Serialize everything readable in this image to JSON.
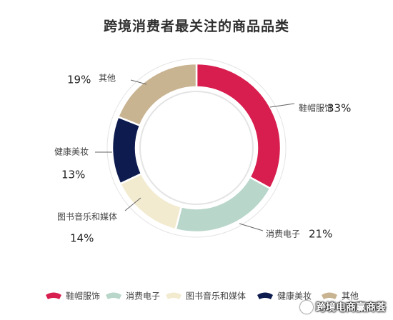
{
  "chart_data": {
    "type": "pie",
    "title": "跨境消费者最关注的商品品类",
    "series": [
      {
        "name": "鞋帽服饰",
        "value": 33,
        "value_label": "33%",
        "color": "#d81e4f"
      },
      {
        "name": "消费电子",
        "value": 21,
        "value_label": "21%",
        "color": "#b8d6ca"
      },
      {
        "name": "图书音乐和媒体",
        "value": 14,
        "value_label": "14%",
        "color": "#f3ebd0"
      },
      {
        "name": "健康美妆",
        "value": 13,
        "value_label": "13%",
        "color": "#0d1b4e"
      },
      {
        "name": "其他",
        "value": 19,
        "value_label": "19%",
        "color": "#c9b492"
      }
    ],
    "legend": {
      "placement": "bottom",
      "entries": [
        "鞋帽服饰",
        "消费电子",
        "图书音乐和媒体",
        "健康美妆",
        "其他"
      ]
    }
  },
  "watermark": {
    "text": "跨境电商赢商荟"
  }
}
